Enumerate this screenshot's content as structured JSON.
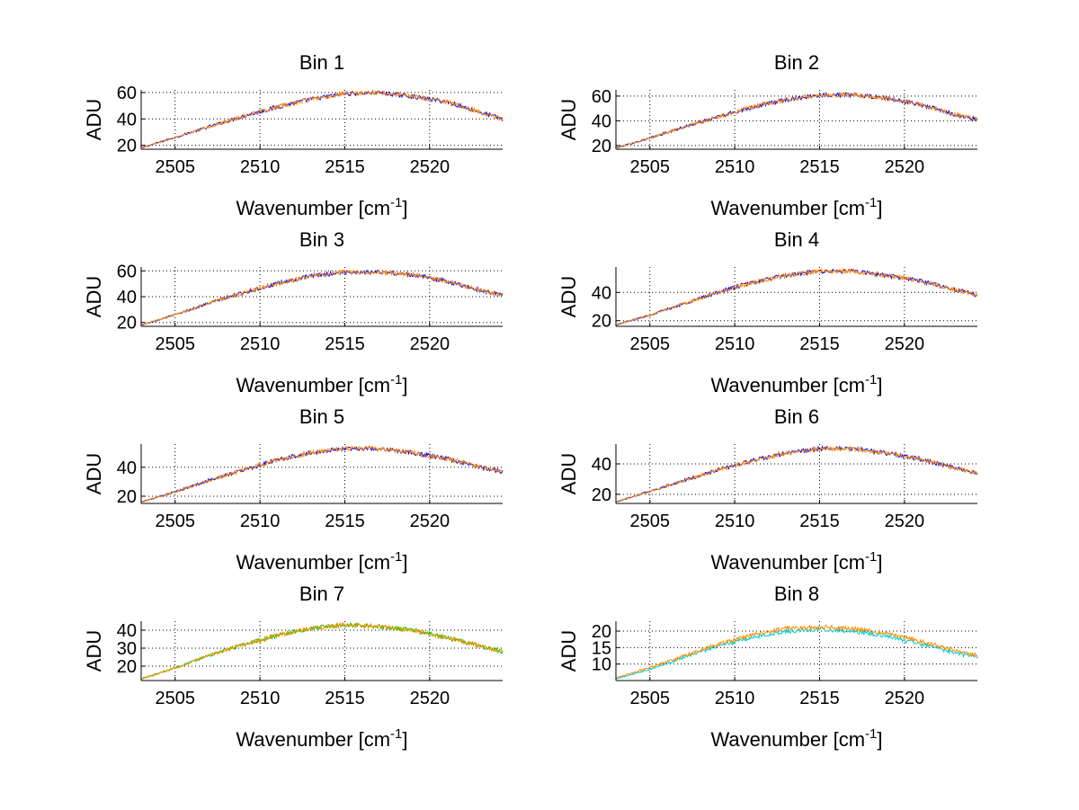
{
  "figure": {
    "background": "#ffffff"
  },
  "chart_data": [
    {
      "type": "line",
      "title": "Bin 1",
      "xlabel": "Wavenumber [cm",
      "xlabel_sup": "-1",
      "xlabel_end": "]",
      "ylabel": "ADU",
      "xlim": [
        2503,
        2524.3
      ],
      "ylim": [
        17,
        62
      ],
      "xticks": [
        2505,
        2510,
        2515,
        2520
      ],
      "yticks": [
        20,
        40,
        60
      ],
      "grid": true,
      "series": [
        {
          "color": "#0000ff",
          "x": [
            2503,
            2505,
            2507,
            2509,
            2511,
            2513,
            2515,
            2517,
            2519,
            2521,
            2523,
            2524.3
          ],
          "y": [
            18,
            26,
            34,
            42,
            49,
            55,
            59,
            60,
            57,
            53,
            45,
            40
          ]
        },
        {
          "color": "#ff8c00",
          "x": [
            2503,
            2505,
            2507,
            2509,
            2511,
            2513,
            2515,
            2517,
            2519,
            2521,
            2523,
            2524.3
          ],
          "y": [
            18,
            26,
            34,
            42,
            49,
            55,
            59,
            60,
            57,
            53,
            45,
            40
          ]
        }
      ]
    },
    {
      "type": "line",
      "title": "Bin 2",
      "xlabel": "Wavenumber [cm",
      "xlabel_sup": "-1",
      "xlabel_end": "]",
      "ylabel": "ADU",
      "xlim": [
        2503,
        2524.3
      ],
      "ylim": [
        17,
        65
      ],
      "xticks": [
        2505,
        2510,
        2515,
        2520
      ],
      "yticks": [
        20,
        40,
        60
      ],
      "grid": true,
      "series": [
        {
          "color": "#0000ff",
          "x": [
            2503,
            2505,
            2507,
            2509,
            2511,
            2513,
            2515,
            2517,
            2519,
            2521,
            2523,
            2524.3
          ],
          "y": [
            18,
            26,
            35,
            43,
            51,
            57,
            61,
            61,
            58,
            53,
            45,
            41
          ]
        },
        {
          "color": "#ff8c00",
          "x": [
            2503,
            2505,
            2507,
            2509,
            2511,
            2513,
            2515,
            2517,
            2519,
            2521,
            2523,
            2524.3
          ],
          "y": [
            18,
            26,
            35,
            43,
            51,
            57,
            61,
            61,
            58,
            53,
            45,
            41
          ]
        }
      ]
    },
    {
      "type": "line",
      "title": "Bin 3",
      "xlabel": "Wavenumber [cm",
      "xlabel_sup": "-1",
      "xlabel_end": "]",
      "ylabel": "ADU",
      "xlim": [
        2503,
        2524.3
      ],
      "ylim": [
        17,
        63
      ],
      "xticks": [
        2505,
        2510,
        2515,
        2520
      ],
      "yticks": [
        20,
        40,
        60
      ],
      "grid": true,
      "series": [
        {
          "color": "#0000ff",
          "x": [
            2503,
            2505,
            2507,
            2509,
            2511,
            2513,
            2515,
            2517,
            2519,
            2521,
            2523,
            2524.3
          ],
          "y": [
            18,
            26,
            35,
            43,
            50,
            56,
            59,
            59,
            57,
            52,
            45,
            41
          ]
        },
        {
          "color": "#ff8c00",
          "x": [
            2503,
            2505,
            2507,
            2509,
            2511,
            2513,
            2515,
            2517,
            2519,
            2521,
            2523,
            2524.3
          ],
          "y": [
            18,
            26,
            35,
            43,
            50,
            56,
            59,
            59,
            57,
            52,
            45,
            41
          ]
        }
      ]
    },
    {
      "type": "line",
      "title": "Bin 4",
      "xlabel": "Wavenumber [cm",
      "xlabel_sup": "-1",
      "xlabel_end": "]",
      "ylabel": "ADU",
      "xlim": [
        2503,
        2524.3
      ],
      "ylim": [
        16,
        58
      ],
      "xticks": [
        2505,
        2510,
        2515,
        2520
      ],
      "yticks": [
        20,
        40
      ],
      "grid": true,
      "series": [
        {
          "color": "#0000ff",
          "x": [
            2503,
            2505,
            2507,
            2509,
            2511,
            2513,
            2515,
            2517,
            2519,
            2521,
            2523,
            2524.3
          ],
          "y": [
            17,
            24,
            32,
            40,
            47,
            52,
            55,
            55,
            52,
            48,
            42,
            38
          ]
        },
        {
          "color": "#ff8c00",
          "x": [
            2503,
            2505,
            2507,
            2509,
            2511,
            2513,
            2515,
            2517,
            2519,
            2521,
            2523,
            2524.3
          ],
          "y": [
            17,
            24,
            32,
            40,
            47,
            52,
            55,
            55,
            52,
            48,
            42,
            38
          ]
        }
      ]
    },
    {
      "type": "line",
      "title": "Bin 5",
      "xlabel": "Wavenumber [cm",
      "xlabel_sup": "-1",
      "xlabel_end": "]",
      "ylabel": "ADU",
      "xlim": [
        2503,
        2524.3
      ],
      "ylim": [
        15,
        56
      ],
      "xticks": [
        2505,
        2510,
        2515,
        2520
      ],
      "yticks": [
        20,
        40
      ],
      "grid": true,
      "series": [
        {
          "color": "#0000ff",
          "x": [
            2503,
            2505,
            2507,
            2509,
            2511,
            2513,
            2515,
            2517,
            2519,
            2521,
            2523,
            2524.3
          ],
          "y": [
            16,
            23,
            31,
            38,
            45,
            50,
            53,
            53,
            50,
            46,
            40,
            37
          ]
        },
        {
          "color": "#ff8c00",
          "x": [
            2503,
            2505,
            2507,
            2509,
            2511,
            2513,
            2515,
            2517,
            2519,
            2521,
            2523,
            2524.3
          ],
          "y": [
            16,
            23,
            31,
            38,
            45,
            50,
            53,
            53,
            50,
            46,
            40,
            37
          ]
        }
      ]
    },
    {
      "type": "line",
      "title": "Bin 6",
      "xlabel": "Wavenumber [cm",
      "xlabel_sup": "-1",
      "xlabel_end": "]",
      "ylabel": "ADU",
      "xlim": [
        2503,
        2524.3
      ],
      "ylim": [
        14,
        53
      ],
      "xticks": [
        2505,
        2510,
        2515,
        2520
      ],
      "yticks": [
        20,
        40
      ],
      "grid": true,
      "series": [
        {
          "color": "#0000ff",
          "x": [
            2503,
            2505,
            2507,
            2509,
            2511,
            2513,
            2515,
            2517,
            2519,
            2521,
            2523,
            2524.3
          ],
          "y": [
            15,
            22,
            29,
            36,
            42,
            47,
            50,
            50,
            47,
            43,
            37,
            34
          ]
        },
        {
          "color": "#ff8c00",
          "x": [
            2503,
            2505,
            2507,
            2509,
            2511,
            2513,
            2515,
            2517,
            2519,
            2521,
            2523,
            2524.3
          ],
          "y": [
            15,
            22,
            29,
            36,
            42,
            47,
            50,
            50,
            47,
            43,
            37,
            34
          ]
        }
      ]
    },
    {
      "type": "line",
      "title": "Bin 7",
      "xlabel": "Wavenumber [cm",
      "xlabel_sup": "-1",
      "xlabel_end": "]",
      "ylabel": "ADU",
      "xlim": [
        2503,
        2524.3
      ],
      "ylim": [
        12,
        45
      ],
      "xticks": [
        2505,
        2510,
        2515,
        2520
      ],
      "yticks": [
        20,
        30,
        40
      ],
      "grid": true,
      "series": [
        {
          "color": "#00cc00",
          "x": [
            2503,
            2505,
            2507,
            2509,
            2511,
            2513,
            2515,
            2517,
            2519,
            2521,
            2523,
            2524.3
          ],
          "y": [
            13,
            19,
            26,
            32,
            37,
            41,
            43,
            42,
            40,
            36,
            31,
            28
          ]
        },
        {
          "color": "#ff8c00",
          "x": [
            2503,
            2505,
            2507,
            2509,
            2511,
            2513,
            2515,
            2517,
            2519,
            2521,
            2523,
            2524.3
          ],
          "y": [
            13,
            19,
            26,
            32,
            37,
            41,
            43,
            42,
            40,
            36,
            31,
            28
          ]
        }
      ]
    },
    {
      "type": "line",
      "title": "Bin 8",
      "xlabel": "Wavenumber [cm",
      "xlabel_sup": "-1",
      "xlabel_end": "]",
      "ylabel": "ADU",
      "xlim": [
        2503,
        2524.3
      ],
      "ylim": [
        5,
        23
      ],
      "xticks": [
        2505,
        2510,
        2515,
        2520
      ],
      "yticks": [
        10,
        15,
        20
      ],
      "grid": true,
      "series": [
        {
          "color": "#00cccc",
          "x": [
            2503,
            2505,
            2507,
            2509,
            2511,
            2513,
            2515,
            2517,
            2519,
            2521,
            2523,
            2524.3
          ],
          "y": [
            5.5,
            8.5,
            12,
            15.5,
            18,
            20,
            20.5,
            20,
            18.5,
            16,
            13.5,
            12
          ]
        },
        {
          "color": "#ff8c00",
          "x": [
            2503,
            2505,
            2507,
            2509,
            2511,
            2513,
            2515,
            2517,
            2519,
            2521,
            2523,
            2524.3
          ],
          "y": [
            5.8,
            9,
            12.5,
            16,
            18.8,
            20.8,
            21.3,
            20.8,
            19.3,
            16.8,
            14.2,
            12.6
          ]
        }
      ]
    }
  ]
}
